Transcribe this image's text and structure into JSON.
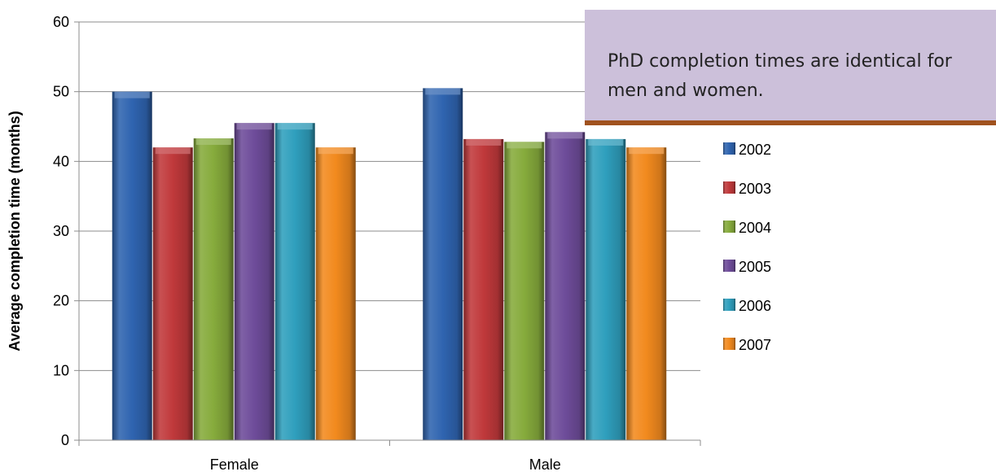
{
  "chart_data": {
    "type": "bar",
    "categories": [
      "Female",
      "Male"
    ],
    "series": [
      {
        "name": "2002",
        "color": "#2f64b0",
        "values": [
          50.0,
          50.5
        ]
      },
      {
        "name": "2003",
        "color": "#c0393b",
        "values": [
          42.0,
          43.2
        ]
      },
      {
        "name": "2004",
        "color": "#86ab3c",
        "values": [
          43.3,
          42.8
        ]
      },
      {
        "name": "2005",
        "color": "#6e4c9a",
        "values": [
          45.5,
          44.2
        ]
      },
      {
        "name": "2006",
        "color": "#2f9fbd",
        "values": [
          45.5,
          43.2
        ]
      },
      {
        "name": "2007",
        "color": "#f28a1e",
        "values": [
          42.0,
          42.0
        ]
      }
    ],
    "ylabel": "Average completion time (months)",
    "ylim": [
      0,
      60
    ],
    "yticks": [
      0,
      10,
      20,
      30,
      40,
      50,
      60
    ],
    "grid": true,
    "legend": "right"
  },
  "callout": {
    "text": "PhD completion times are identical for men and women."
  }
}
